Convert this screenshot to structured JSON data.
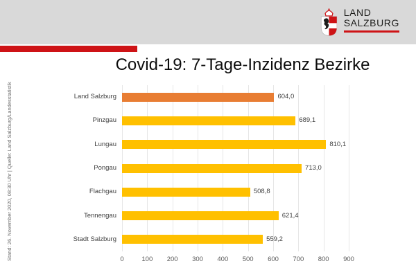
{
  "title": "Covid-19: 7-Tage-Inzidenz Bezirke",
  "header": {
    "band_color": "#D9D9D9",
    "logo": {
      "line1": "LAND",
      "line2": "SALZBURG",
      "crest_icon": "salzburg-coat-of-arms",
      "underline_color": "#CE1316"
    }
  },
  "accent_bar_color": "#CE1316",
  "sidebar": {
    "source_line": "Stand: 26. November 2020, 08:30 Uhr  |  Quelle: Land Salzburg/Landesstatistik"
  },
  "chart_data": {
    "type": "bar",
    "orientation": "horizontal",
    "title": "Covid-19: 7-Tage-Inzidenz Bezirke",
    "categories": [
      "Land Salzburg",
      "Pinzgau",
      "Lungau",
      "Pongau",
      "Flachgau",
      "Tennengau",
      "Stadt Salzburg"
    ],
    "values": [
      604.0,
      689.1,
      810.1,
      713.0,
      508.8,
      621.4,
      559.2
    ],
    "value_labels": [
      "604,0",
      "689,1",
      "810,1",
      "713,0",
      "508,8",
      "621,4",
      "559,2"
    ],
    "bar_colors": [
      "#E87D33",
      "#FFC000",
      "#FFC000",
      "#FFC000",
      "#FFC000",
      "#FFC000",
      "#FFC000"
    ],
    "xlim": [
      0,
      900
    ],
    "x_ticks": [
      0,
      100,
      200,
      300,
      400,
      500,
      600,
      700,
      800,
      900
    ],
    "grid": "vertical",
    "gridline_color": "#E6E6E6",
    "legend": "none",
    "xlabel": "",
    "ylabel": ""
  }
}
